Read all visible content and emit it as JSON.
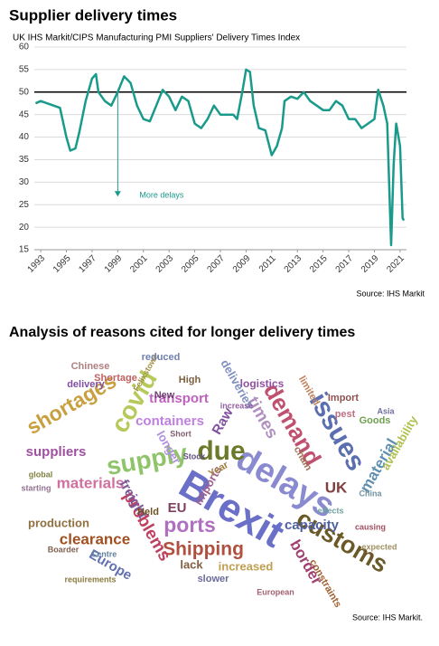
{
  "chart_data": [
    {
      "type": "line",
      "title": "Supplier delivery times",
      "subtitle": "UK IHS Markit/CIPS Manufacturing PMI Suppliers' Delivery Times Index",
      "x": [
        1992.6,
        1993,
        1993.5,
        1994,
        1994.5,
        1995,
        1995.3,
        1995.7,
        1996,
        1996.5,
        1997,
        1997.3,
        1997.5,
        1998,
        1998.5,
        1999,
        1999.5,
        2000,
        2000.5,
        2001,
        2001.5,
        2002,
        2002.5,
        2003,
        2003.5,
        2004,
        2004.5,
        2005,
        2005.5,
        2006,
        2006.5,
        2007,
        2007.5,
        2008,
        2008.3,
        2008.7,
        2009,
        2009.3,
        2009.6,
        2010,
        2010.5,
        2011,
        2011.4,
        2011.8,
        2012,
        2012.5,
        2013,
        2013.5,
        2014,
        2014.5,
        2015,
        2015.5,
        2016,
        2016.5,
        2017,
        2017.5,
        2018,
        2018.5,
        2019,
        2019.3,
        2019.7,
        2020,
        2020.3,
        2020.5,
        2020.7,
        2021,
        2021.2,
        2021.3
      ],
      "values": [
        47.5,
        48,
        47.5,
        47,
        46.5,
        40,
        37,
        37.5,
        41,
        48,
        53,
        54,
        50,
        48,
        47,
        50,
        53.5,
        52,
        47,
        44,
        43.5,
        47,
        50.5,
        49,
        46,
        49,
        48,
        43,
        42,
        44,
        47,
        45,
        45,
        45,
        44,
        50,
        55,
        54.5,
        47,
        42,
        41.5,
        36,
        38,
        42,
        48,
        49,
        48.5,
        50,
        48,
        47,
        46,
        46,
        48,
        47,
        44,
        44,
        42,
        43,
        44,
        50.5,
        47,
        43,
        16,
        34,
        43,
        38,
        22,
        21.5
      ],
      "color": "#1a9a8a",
      "xlim": [
        1992.5,
        2021.5
      ],
      "xticks": [
        1993,
        1995,
        1997,
        1999,
        2001,
        2003,
        2005,
        2007,
        2009,
        2011,
        2013,
        2015,
        2017,
        2019,
        2021
      ],
      "ylim": [
        15,
        60
      ],
      "yticks": [
        15,
        20,
        25,
        30,
        35,
        40,
        45,
        50,
        55,
        60
      ],
      "grid": true,
      "reference_line": 50,
      "annotation": {
        "text": "More delays",
        "x": 1999,
        "y_from": 50,
        "y_to": 27
      },
      "source": "Source: IHS Markit"
    },
    {
      "type": "wordcloud",
      "title": "Analysis of reasons cited for longer delivery times",
      "source": "Source: IHS Markit.",
      "words": [
        {
          "text": "Brexit",
          "color": "#6a6fc7"
        },
        {
          "text": "delays",
          "color": "#8a8ad0"
        },
        {
          "text": "due",
          "color": "#6b7a2a"
        },
        {
          "text": "supply",
          "color": "#8fc46a"
        },
        {
          "text": "issues",
          "color": "#5b6fb0"
        },
        {
          "text": "demand",
          "color": "#c05070"
        },
        {
          "text": "covid",
          "color": "#b6c95a"
        },
        {
          "text": "shortages",
          "color": "#c8a040"
        },
        {
          "text": "customs",
          "color": "#6a5a2a"
        },
        {
          "text": "Shipping",
          "color": "#b05040"
        },
        {
          "text": "ports",
          "color": "#b070c0"
        },
        {
          "text": "problems",
          "color": "#c04060"
        },
        {
          "text": "materials",
          "color": "#d070a0"
        },
        {
          "text": "containers",
          "color": "#c080e0"
        },
        {
          "text": "clearance",
          "color": "#a05020"
        },
        {
          "text": "Europe",
          "color": "#6070b0"
        },
        {
          "text": "capacity",
          "color": "#5060a0"
        },
        {
          "text": "border",
          "color": "#a04070"
        },
        {
          "text": "material",
          "color": "#6090b0"
        },
        {
          "text": "availability",
          "color": "#b0c050"
        },
        {
          "text": "times",
          "color": "#b090c0"
        },
        {
          "text": "UK",
          "color": "#804040"
        },
        {
          "text": "freight",
          "color": "#7a5a9a"
        },
        {
          "text": "transport",
          "color": "#c060c0"
        },
        {
          "text": "Raw",
          "color": "#8050a0"
        },
        {
          "text": "longer",
          "color": "#b090e0"
        },
        {
          "text": "Held",
          "color": "#705020"
        },
        {
          "text": "EU",
          "color": "#804060"
        },
        {
          "text": "imports",
          "color": "#a06090"
        },
        {
          "text": "increased",
          "color": "#c0a050"
        },
        {
          "text": "lack",
          "color": "#806040"
        },
        {
          "text": "production",
          "color": "#907040"
        },
        {
          "text": "suppliers",
          "color": "#a050a0"
        },
        {
          "text": "delivery",
          "color": "#8050a0"
        },
        {
          "text": "Shortage",
          "color": "#c06060"
        },
        {
          "text": "logistics",
          "color": "#9050a0"
        },
        {
          "text": "deliveries",
          "color": "#8090c0"
        },
        {
          "text": "Chinese",
          "color": "#b08080"
        },
        {
          "text": "Felixstowe",
          "color": "#a09040"
        },
        {
          "text": "reduced",
          "color": "#7080b0"
        },
        {
          "text": "High",
          "color": "#806040"
        },
        {
          "text": "New",
          "color": "#704070"
        },
        {
          "text": "chain",
          "color": "#a07050"
        },
        {
          "text": "Import",
          "color": "#905050"
        },
        {
          "text": "pest",
          "color": "#c07080"
        },
        {
          "text": "Goods",
          "color": "#70a050"
        },
        {
          "text": "Year",
          "color": "#a08040"
        },
        {
          "text": "Stock",
          "color": "#605080"
        },
        {
          "text": "Short",
          "color": "#806070"
        },
        {
          "text": "Asia",
          "color": "#7070a0"
        },
        {
          "text": "global",
          "color": "#808040"
        },
        {
          "text": "slower",
          "color": "#6a6a9a"
        },
        {
          "text": "constraints",
          "color": "#a06030"
        },
        {
          "text": "causing",
          "color": "#a05060"
        },
        {
          "text": "China",
          "color": "#7090a0"
        },
        {
          "text": "limited",
          "color": "#c08060"
        },
        {
          "text": "increase",
          "color": "#9060a0"
        },
        {
          "text": "effects",
          "color": "#70a0a0"
        },
        {
          "text": "Boarder",
          "color": "#806050"
        },
        {
          "text": "requirements",
          "color": "#8a7a40"
        },
        {
          "text": "starting",
          "color": "#907090"
        },
        {
          "text": "expected",
          "color": "#a09060"
        },
        {
          "text": "European",
          "color": "#a06070"
        },
        {
          "text": "Centre",
          "color": "#6080a0"
        }
      ]
    }
  ]
}
